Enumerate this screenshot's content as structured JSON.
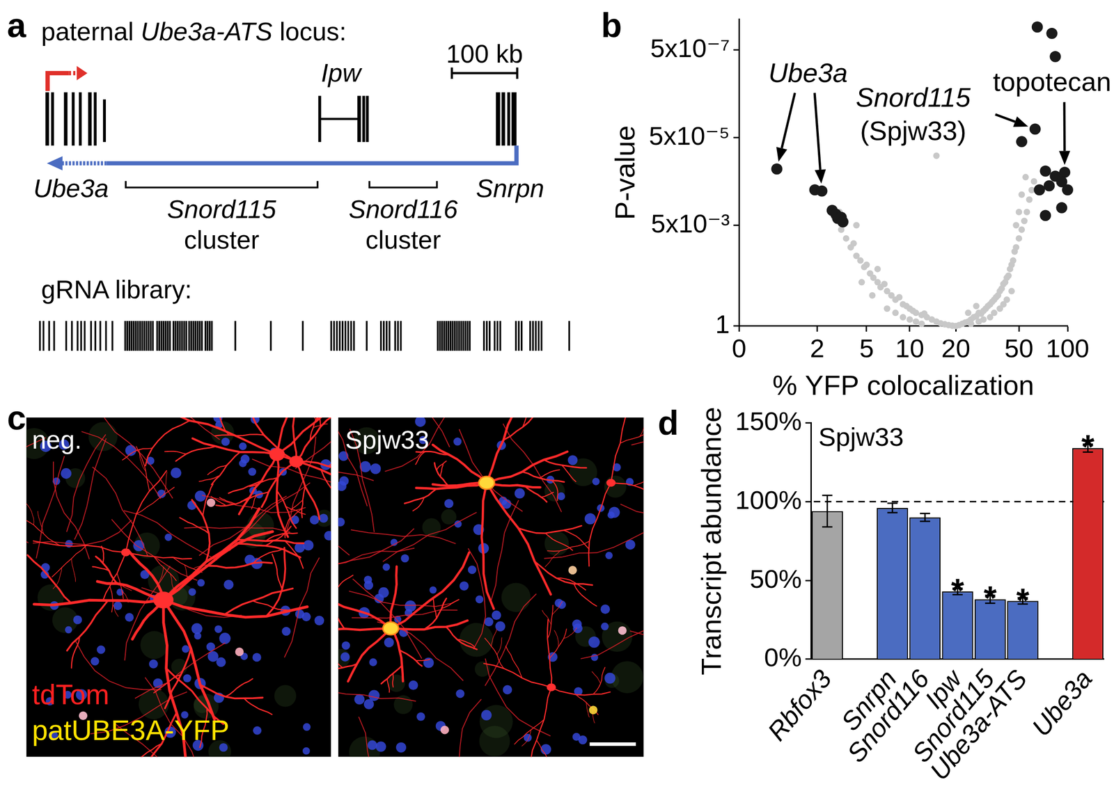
{
  "figure": {
    "a": {
      "label": "a",
      "title": [
        {
          "text": "paternal "
        },
        {
          "text": "Ube3a-ATS",
          "italic": true
        },
        {
          "text": " locus:"
        }
      ],
      "scale_bar": "100 kb",
      "gene_labels": [
        "Ube3a",
        "Ipw",
        "Snrpn"
      ],
      "clusters": [
        [
          "Snord115",
          "cluster"
        ],
        [
          "Snord116",
          "cluster"
        ]
      ],
      "library": "gRNA library:"
    },
    "c": {
      "label": "c",
      "images": [
        "neg.",
        "Spjw33"
      ],
      "channels": [
        {
          "text": "tdTom",
          "color": "#ff2020"
        },
        {
          "text": "patUBE3A-YFP",
          "color": "#ffe200"
        }
      ]
    }
  },
  "chart_data": [
    {
      "label": "b",
      "type": "scatter",
      "xlabel": "% YFP colocalization",
      "ylabel": "P-value",
      "xlim": [
        0,
        100
      ],
      "xticks": [
        0,
        2,
        5,
        10,
        20,
        50,
        100
      ],
      "ylim": [
        1,
        1e-07
      ],
      "yticks": [
        {
          "value": 5e-07,
          "label": "5x10⁻⁷"
        },
        {
          "value": 5e-05,
          "label": "5x10⁻⁵"
        },
        {
          "value": 0.005,
          "label": "5x10⁻³"
        },
        1
      ],
      "log": "y",
      "grid": false,
      "series": [
        {
          "color": "#c8c8c8",
          "marker": "circle",
          "x": [
            2.8,
            3.1,
            3.2,
            3.5,
            3.8,
            4.0,
            4.2,
            4.2,
            4.5,
            4.6,
            4.8,
            5.0,
            5.3,
            5.5,
            5.6,
            6.0,
            6.0,
            6.3,
            6.7,
            7.0,
            7.0,
            7.5,
            8.0,
            8.0,
            8.5,
            9.0,
            9.0,
            9.5,
            10,
            10,
            10.5,
            11,
            11,
            12,
            12,
            12.5,
            13,
            14,
            15,
            15,
            16,
            17,
            18,
            19,
            20,
            21,
            22,
            23,
            24,
            24,
            25,
            25,
            26,
            27,
            27,
            28,
            28,
            29,
            30,
            30,
            31,
            32,
            33,
            33,
            34,
            35,
            35,
            36,
            37,
            38,
            38,
            39,
            40,
            40,
            41,
            42,
            42,
            43,
            44,
            45,
            45,
            46,
            47,
            48,
            48,
            50,
            50,
            52,
            52,
            54,
            55,
            56,
            58,
            60,
            62
          ],
          "values": [
            0.0032,
            0.0025,
            0.0063,
            0.01,
            0.016,
            0.013,
            0.025,
            0.005,
            0.032,
            0.1,
            0.045,
            0.04,
            0.063,
            0.2,
            0.079,
            0.1,
            0.05,
            0.13,
            0.11,
            0.16,
            0.4,
            0.2,
            0.25,
            0.5,
            0.22,
            0.32,
            0.63,
            0.35,
            0.4,
            0.71,
            0.45,
            0.5,
            0.79,
            0.56,
            0.89,
            0.52,
            0.63,
            0.71,
            0.79,
            0.00013,
            0.87,
            0.91,
            0.95,
            0.98,
            1,
            0.95,
            0.89,
            0.83,
            0.79,
            0.5,
            0.71,
            0.89,
            0.63,
            0.6,
            0.35,
            0.5,
            0.79,
            0.52,
            0.45,
            0.71,
            0.4,
            0.35,
            0.32,
            0.63,
            0.28,
            0.25,
            0.5,
            0.22,
            0.2,
            0.16,
            0.4,
            0.14,
            0.11,
            0.32,
            0.1,
            0.079,
            0.25,
            0.071,
            0.05,
            0.04,
            0.16,
            0.032,
            0.02,
            0.016,
            0.005,
            0.01,
            0.0025,
            0.0063,
            0.001,
            0.004,
            0.0004,
            0.0025,
            0.0013,
            0.00079,
            0.0005
          ]
        },
        {
          "color": "#1a1a1a",
          "marker": "circle",
          "x": [
            0.7,
            1.9,
            2.2,
            2.7,
            2.9,
            3.0,
            3.2,
            3.3,
            65,
            80,
            84,
            63,
            52,
            73,
            96,
            84,
            92,
            77,
            100,
            67,
            92,
            73
          ],
          "values": [
            0.00026,
            0.00078,
            0.00083,
            0.0023,
            0.0028,
            0.0035,
            0.0033,
            0.0042,
            1.5e-07,
            2.1e-07,
            7.1e-07,
            3.2e-05,
            6.2e-05,
            0.00029,
            0.00031,
            0.00038,
            0.00051,
            0.00063,
            0.00078,
            0.00078,
            0.002,
            0.003
          ]
        }
      ],
      "annotations": [
        {
          "lines": [
            {
              "text": "Ube3a",
              "italic": true
            }
          ],
          "points": [
            [
              0.7,
              0.00026
            ],
            [
              2.2,
              0.00083
            ]
          ]
        },
        {
          "lines": [
            {
              "text": "Snord115",
              "italic": true
            },
            {
              "text": "(Spjw33)"
            }
          ],
          "points": [
            [
              63,
              3.2e-05
            ]
          ]
        },
        {
          "lines": [
            {
              "text": "topotecan"
            }
          ],
          "points": [
            [
              96,
              0.00031
            ]
          ]
        }
      ]
    },
    {
      "label": "d",
      "type": "bar",
      "title": "Spjw33",
      "ylabel": "Transcript abundance",
      "categories": [
        "Rbfox3",
        null,
        "Snrpn",
        "Snord116",
        "Ipw",
        "Snord115",
        "Ube3a-ATS",
        null,
        "Ube3a"
      ],
      "values": [
        94,
        null,
        96,
        90,
        43,
        38,
        37,
        null,
        134
      ],
      "errors": [
        10,
        null,
        3,
        2.5,
        2,
        2.5,
        2,
        null,
        2.5
      ],
      "colors": [
        "#a5a5a5",
        null,
        "#4b6cc1",
        "#4b6cc1",
        "#4b6cc1",
        "#4b6cc1",
        "#4b6cc1",
        null,
        "#d42a2a"
      ],
      "ylim": [
        0,
        150
      ],
      "yticks": [
        {
          "value": 0,
          "label": "0%"
        },
        {
          "value": 50,
          "label": "50%"
        },
        {
          "value": 100,
          "label": "100%"
        },
        {
          "value": 150,
          "label": "150%"
        }
      ],
      "reference_line": 100,
      "grid": false,
      "annotations": [
        {
          "text": "*",
          "categories": [
            "Ipw",
            "Snord115",
            "Ube3a-ATS",
            "Ube3a"
          ]
        }
      ]
    }
  ]
}
